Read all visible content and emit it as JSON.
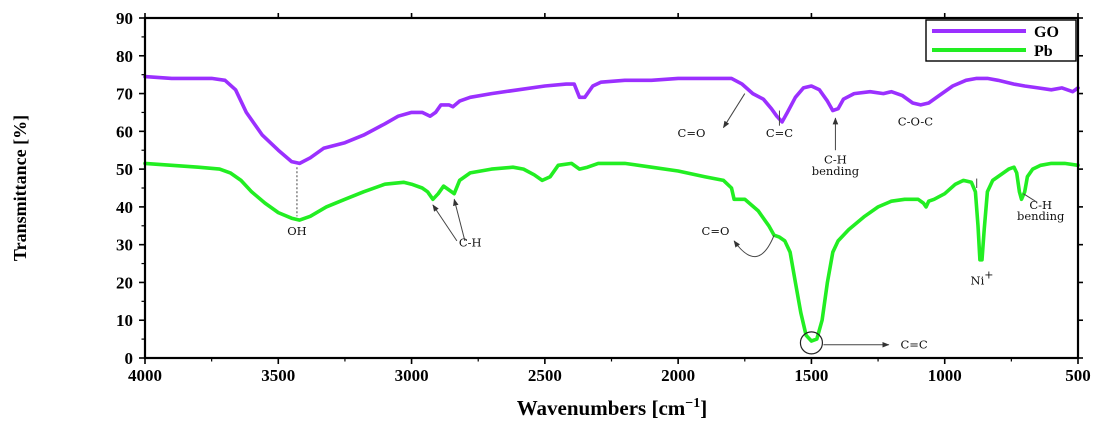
{
  "chart_data": {
    "type": "line",
    "xlabel": "Wavenumbers [cm",
    "xlabel_sup": "−1",
    "xlabel_end": "]",
    "ylabel": "Transmittance [%]",
    "xlim": [
      4000,
      500
    ],
    "ylim": [
      0,
      90
    ],
    "xticks": [
      "4000",
      "3500",
      "3000",
      "2500",
      "2000",
      "1500",
      "1000",
      "500"
    ],
    "yticks": [
      "0",
      "10",
      "20",
      "30",
      "40",
      "50",
      "60",
      "70",
      "80",
      "90"
    ],
    "legend_position": "top-right",
    "series": [
      {
        "name": "GO",
        "color": "#9b30ff",
        "points": [
          [
            4000,
            74.5
          ],
          [
            3900,
            74
          ],
          [
            3800,
            74
          ],
          [
            3750,
            74
          ],
          [
            3700,
            73.5
          ],
          [
            3660,
            71
          ],
          [
            3620,
            65
          ],
          [
            3560,
            59
          ],
          [
            3500,
            55
          ],
          [
            3450,
            52
          ],
          [
            3420,
            51.5
          ],
          [
            3380,
            53
          ],
          [
            3330,
            55.5
          ],
          [
            3250,
            57
          ],
          [
            3180,
            59
          ],
          [
            3100,
            62
          ],
          [
            3050,
            64
          ],
          [
            3000,
            65
          ],
          [
            2960,
            65
          ],
          [
            2930,
            64
          ],
          [
            2910,
            65
          ],
          [
            2890,
            67
          ],
          [
            2860,
            67
          ],
          [
            2845,
            66.5
          ],
          [
            2820,
            68
          ],
          [
            2780,
            69
          ],
          [
            2700,
            70
          ],
          [
            2600,
            71
          ],
          [
            2500,
            72
          ],
          [
            2420,
            72.5
          ],
          [
            2390,
            72.5
          ],
          [
            2370,
            69
          ],
          [
            2350,
            69
          ],
          [
            2320,
            72
          ],
          [
            2290,
            73
          ],
          [
            2200,
            73.5
          ],
          [
            2100,
            73.5
          ],
          [
            2000,
            74
          ],
          [
            1900,
            74
          ],
          [
            1800,
            74
          ],
          [
            1760,
            72.5
          ],
          [
            1720,
            70
          ],
          [
            1680,
            68.5
          ],
          [
            1650,
            66
          ],
          [
            1630,
            64
          ],
          [
            1610,
            62.5
          ],
          [
            1590,
            65
          ],
          [
            1560,
            69
          ],
          [
            1530,
            71.5
          ],
          [
            1500,
            72
          ],
          [
            1470,
            71
          ],
          [
            1440,
            68
          ],
          [
            1420,
            65.5
          ],
          [
            1400,
            66
          ],
          [
            1380,
            68.5
          ],
          [
            1340,
            70
          ],
          [
            1280,
            70.5
          ],
          [
            1230,
            70
          ],
          [
            1200,
            70.5
          ],
          [
            1160,
            69.5
          ],
          [
            1120,
            67.5
          ],
          [
            1090,
            67
          ],
          [
            1060,
            67.5
          ],
          [
            1020,
            69.5
          ],
          [
            970,
            72
          ],
          [
            920,
            73.5
          ],
          [
            880,
            74
          ],
          [
            840,
            74
          ],
          [
            800,
            73.5
          ],
          [
            740,
            72.5
          ],
          [
            700,
            72
          ],
          [
            650,
            71.5
          ],
          [
            600,
            71
          ],
          [
            560,
            71.5
          ],
          [
            520,
            70.5
          ],
          [
            500,
            71.5
          ]
        ]
      },
      {
        "name": "Pb",
        "color": "#22ee22",
        "points": [
          [
            4000,
            51.5
          ],
          [
            3900,
            51
          ],
          [
            3800,
            50.5
          ],
          [
            3720,
            50
          ],
          [
            3680,
            49
          ],
          [
            3640,
            47
          ],
          [
            3600,
            44
          ],
          [
            3550,
            41
          ],
          [
            3500,
            38.5
          ],
          [
            3450,
            37
          ],
          [
            3420,
            36.5
          ],
          [
            3380,
            37.5
          ],
          [
            3320,
            40
          ],
          [
            3250,
            42
          ],
          [
            3180,
            44
          ],
          [
            3100,
            46
          ],
          [
            3030,
            46.5
          ],
          [
            3000,
            46
          ],
          [
            2960,
            45
          ],
          [
            2940,
            44
          ],
          [
            2920,
            42
          ],
          [
            2900,
            43.5
          ],
          [
            2880,
            45.5
          ],
          [
            2860,
            44.5
          ],
          [
            2840,
            43.5
          ],
          [
            2820,
            47
          ],
          [
            2780,
            49
          ],
          [
            2700,
            50
          ],
          [
            2620,
            50.5
          ],
          [
            2580,
            50
          ],
          [
            2540,
            48.5
          ],
          [
            2510,
            47
          ],
          [
            2480,
            48
          ],
          [
            2450,
            51
          ],
          [
            2400,
            51.5
          ],
          [
            2370,
            50
          ],
          [
            2340,
            50.5
          ],
          [
            2300,
            51.5
          ],
          [
            2200,
            51.5
          ],
          [
            2100,
            50.5
          ],
          [
            2000,
            49.5
          ],
          [
            1900,
            48
          ],
          [
            1830,
            47
          ],
          [
            1800,
            45
          ],
          [
            1790,
            42
          ],
          [
            1770,
            42
          ],
          [
            1750,
            42
          ],
          [
            1700,
            39
          ],
          [
            1660,
            35
          ],
          [
            1640,
            32.5
          ],
          [
            1620,
            32
          ],
          [
            1600,
            31
          ],
          [
            1580,
            28
          ],
          [
            1560,
            20
          ],
          [
            1540,
            12
          ],
          [
            1520,
            6
          ],
          [
            1500,
            4.5
          ],
          [
            1480,
            5
          ],
          [
            1460,
            10
          ],
          [
            1440,
            20
          ],
          [
            1420,
            28
          ],
          [
            1400,
            31
          ],
          [
            1360,
            34
          ],
          [
            1300,
            37.5
          ],
          [
            1250,
            40
          ],
          [
            1200,
            41.5
          ],
          [
            1150,
            42
          ],
          [
            1100,
            42
          ],
          [
            1080,
            41
          ],
          [
            1070,
            40
          ],
          [
            1060,
            41.5
          ],
          [
            1040,
            42
          ],
          [
            1000,
            43.5
          ],
          [
            960,
            46
          ],
          [
            930,
            47
          ],
          [
            900,
            46.5
          ],
          [
            885,
            44
          ],
          [
            875,
            35
          ],
          [
            868,
            26
          ],
          [
            860,
            26
          ],
          [
            852,
            34
          ],
          [
            840,
            44
          ],
          [
            820,
            47
          ],
          [
            780,
            49
          ],
          [
            760,
            50
          ],
          [
            740,
            50.5
          ],
          [
            730,
            49
          ],
          [
            720,
            44
          ],
          [
            712,
            42
          ],
          [
            700,
            44
          ],
          [
            690,
            48
          ],
          [
            670,
            50
          ],
          [
            640,
            51
          ],
          [
            600,
            51.5
          ],
          [
            550,
            51.5
          ],
          [
            500,
            51
          ]
        ]
      }
    ],
    "annotations": [
      {
        "text": "C=O",
        "wn": 1950,
        "val": 58.5,
        "anchor": "middle"
      },
      {
        "text": "C=C",
        "wn": 1620,
        "val": 58.5,
        "anchor": "middle"
      },
      {
        "text": "C-H",
        "wn": 1410,
        "val": 51.5,
        "anchor": "middle"
      },
      {
        "text": "bending",
        "wn": 1410,
        "val": 48.5,
        "anchor": "middle"
      },
      {
        "text": "C-O-C",
        "wn": 1110,
        "val": 61.5,
        "anchor": "middle"
      },
      {
        "text": "OH",
        "wn": 3430,
        "val": 32.5,
        "anchor": "middle"
      },
      {
        "text": "C-H",
        "wn": 2780,
        "val": 29.5,
        "anchor": "middle"
      },
      {
        "text": "C=O",
        "wn": 1860,
        "val": 32.5,
        "anchor": "middle"
      },
      {
        "text": "C-H",
        "wn": 640,
        "val": 39.5,
        "anchor": "middle"
      },
      {
        "text": "bending",
        "wn": 640,
        "val": 36.5,
        "anchor": "middle"
      },
      {
        "text": "C=C",
        "wn": 1115,
        "val": 2.5,
        "anchor": "middle"
      }
    ],
    "ni_label": "Ni",
    "ni_sup": "+"
  }
}
